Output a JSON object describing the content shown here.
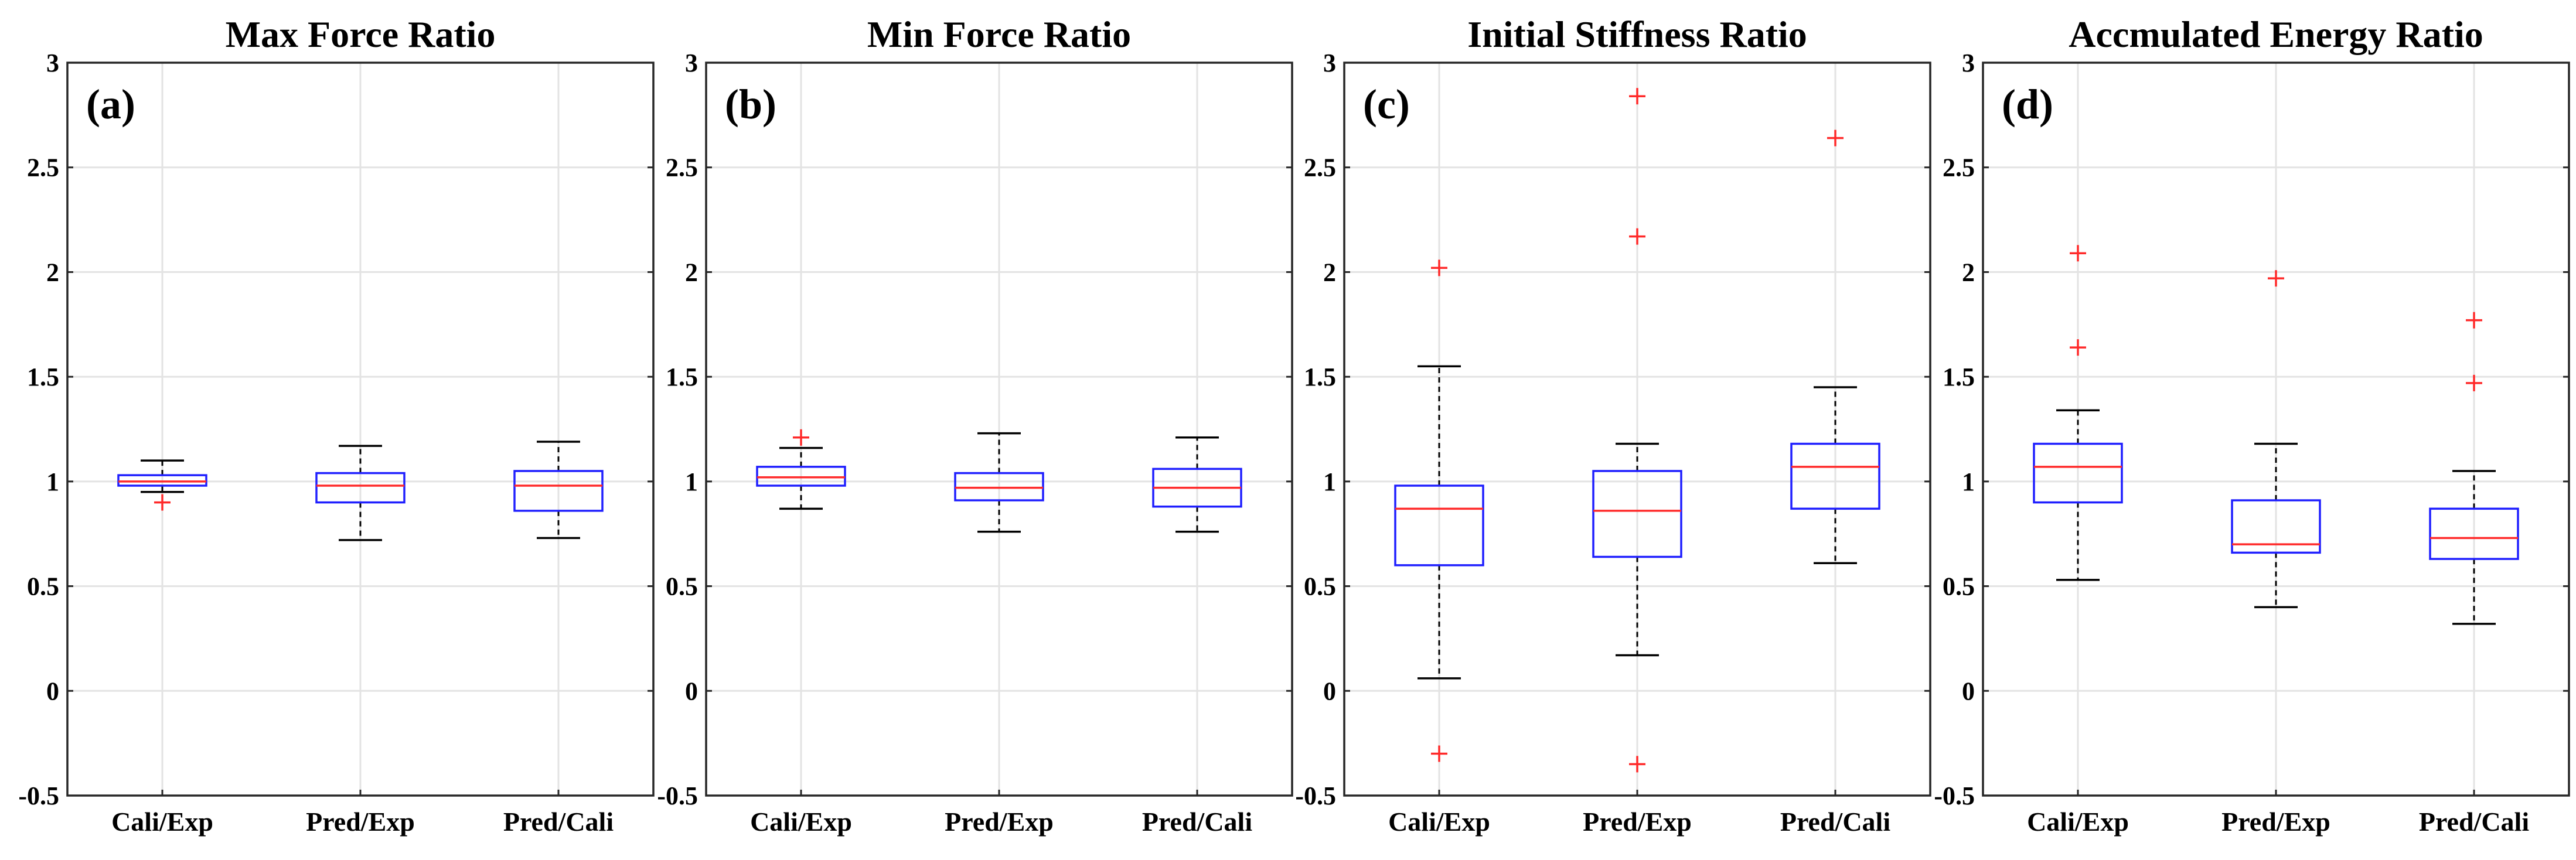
{
  "chart_data": [
    {
      "type": "box",
      "label": "(a)",
      "title": "Max Force Ratio",
      "categories": [
        "Cali/Exp",
        "Pred/Exp",
        "Pred/Cali"
      ],
      "ylim": [
        -0.5,
        3
      ],
      "yticks": [
        "-0.5",
        "0",
        "0.5",
        "1",
        "1.5",
        "2",
        "2.5",
        "3"
      ],
      "grid": true,
      "boxes": [
        {
          "whisker_low": 0.95,
          "q1": 0.98,
          "median": 1.0,
          "q3": 1.03,
          "whisker_high": 1.1,
          "outliers": [
            0.9
          ]
        },
        {
          "whisker_low": 0.72,
          "q1": 0.9,
          "median": 0.98,
          "q3": 1.04,
          "whisker_high": 1.17,
          "outliers": []
        },
        {
          "whisker_low": 0.73,
          "q1": 0.86,
          "median": 0.98,
          "q3": 1.05,
          "whisker_high": 1.19,
          "outliers": []
        }
      ]
    },
    {
      "type": "box",
      "label": "(b)",
      "title": "Min Force Ratio",
      "categories": [
        "Cali/Exp",
        "Pred/Exp",
        "Pred/Cali"
      ],
      "ylim": [
        -0.5,
        3
      ],
      "yticks": [
        "-0.5",
        "0",
        "0.5",
        "1",
        "1.5",
        "2",
        "2.5",
        "3"
      ],
      "grid": true,
      "boxes": [
        {
          "whisker_low": 0.87,
          "q1": 0.98,
          "median": 1.02,
          "q3": 1.07,
          "whisker_high": 1.16,
          "outliers": [
            1.21
          ]
        },
        {
          "whisker_low": 0.76,
          "q1": 0.91,
          "median": 0.97,
          "q3": 1.04,
          "whisker_high": 1.23,
          "outliers": []
        },
        {
          "whisker_low": 0.76,
          "q1": 0.88,
          "median": 0.97,
          "q3": 1.06,
          "whisker_high": 1.21,
          "outliers": []
        }
      ]
    },
    {
      "type": "box",
      "label": "(c)",
      "title": "Initial Stiffness Ratio",
      "categories": [
        "Cali/Exp",
        "Pred/Exp",
        "Pred/Cali"
      ],
      "ylim": [
        -0.5,
        3
      ],
      "yticks": [
        "-0.5",
        "0",
        "0.5",
        "1",
        "1.5",
        "2",
        "2.5",
        "3"
      ],
      "grid": true,
      "boxes": [
        {
          "whisker_low": 0.06,
          "q1": 0.6,
          "median": 0.87,
          "q3": 0.98,
          "whisker_high": 1.55,
          "outliers": [
            2.02,
            -0.3
          ]
        },
        {
          "whisker_low": 0.17,
          "q1": 0.64,
          "median": 0.86,
          "q3": 1.05,
          "whisker_high": 1.18,
          "outliers": [
            2.84,
            2.17,
            -0.35
          ]
        },
        {
          "whisker_low": 0.61,
          "q1": 0.87,
          "median": 1.07,
          "q3": 1.18,
          "whisker_high": 1.45,
          "outliers": [
            2.64
          ]
        }
      ]
    },
    {
      "type": "box",
      "label": "(d)",
      "title": "Accmulated Energy Ratio",
      "categories": [
        "Cali/Exp",
        "Pred/Exp",
        "Pred/Cali"
      ],
      "ylim": [
        -0.5,
        3
      ],
      "yticks": [
        "-0.5",
        "0",
        "0.5",
        "1",
        "1.5",
        "2",
        "2.5",
        "3"
      ],
      "grid": true,
      "boxes": [
        {
          "whisker_low": 0.53,
          "q1": 0.9,
          "median": 1.07,
          "q3": 1.18,
          "whisker_high": 1.34,
          "outliers": [
            2.09,
            1.64
          ]
        },
        {
          "whisker_low": 0.4,
          "q1": 0.66,
          "median": 0.7,
          "q3": 0.91,
          "whisker_high": 1.18,
          "outliers": [
            1.97
          ]
        },
        {
          "whisker_low": 0.32,
          "q1": 0.63,
          "median": 0.73,
          "q3": 0.87,
          "whisker_high": 1.05,
          "outliers": [
            1.77,
            1.47
          ]
        }
      ]
    }
  ],
  "colors": {
    "box": "#1f1fff",
    "median": "#ff2a2a",
    "outlier": "#ff2a2a",
    "whisker": "#000000",
    "grid": "#e3e3e3"
  }
}
